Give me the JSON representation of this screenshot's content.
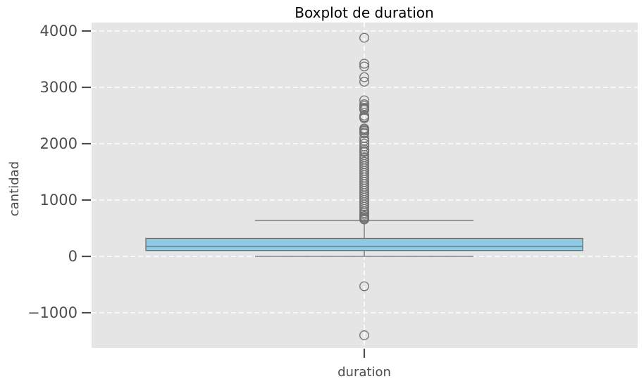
{
  "chart_data": {
    "type": "boxplot",
    "title": "Boxplot de duration",
    "xlabel": "",
    "ylabel": "cantidad",
    "x_categories": [
      "duration"
    ],
    "ylim": [
      -1650,
      4150
    ],
    "yticks": [
      -1000,
      0,
      1000,
      2000,
      3000,
      4000
    ],
    "ytick_labels": [
      "−1000",
      "0",
      "1000",
      "2000",
      "3000",
      "4000"
    ],
    "grid": true,
    "box": {
      "category": "duration",
      "q1": 104,
      "median": 180,
      "q3": 319,
      "whisker_low": 0,
      "whisker_high": 640,
      "color": "#87CEEB"
    },
    "outliers": [
      3880,
      3420,
      3370,
      3180,
      3100,
      2770,
      2700,
      2670,
      2640,
      2620,
      2600,
      2500,
      2470,
      2450,
      2270,
      2250,
      2230,
      2200,
      2180,
      2100,
      2050,
      2000,
      1950,
      1900,
      1870,
      1850,
      1800,
      1760,
      1720,
      1680,
      1640,
      1600,
      1560,
      1520,
      1480,
      1440,
      1400,
      1360,
      1320,
      1280,
      1240,
      1200,
      1160,
      1120,
      1080,
      1040,
      1000,
      960,
      920,
      880,
      840,
      800,
      770,
      740,
      710,
      690,
      670,
      655,
      -530,
      -1400
    ],
    "colors": {
      "background": "#E5E5E5",
      "grid": "#FFFFFF",
      "box_fill": "#8FCAE3",
      "lines": "#707070"
    }
  }
}
